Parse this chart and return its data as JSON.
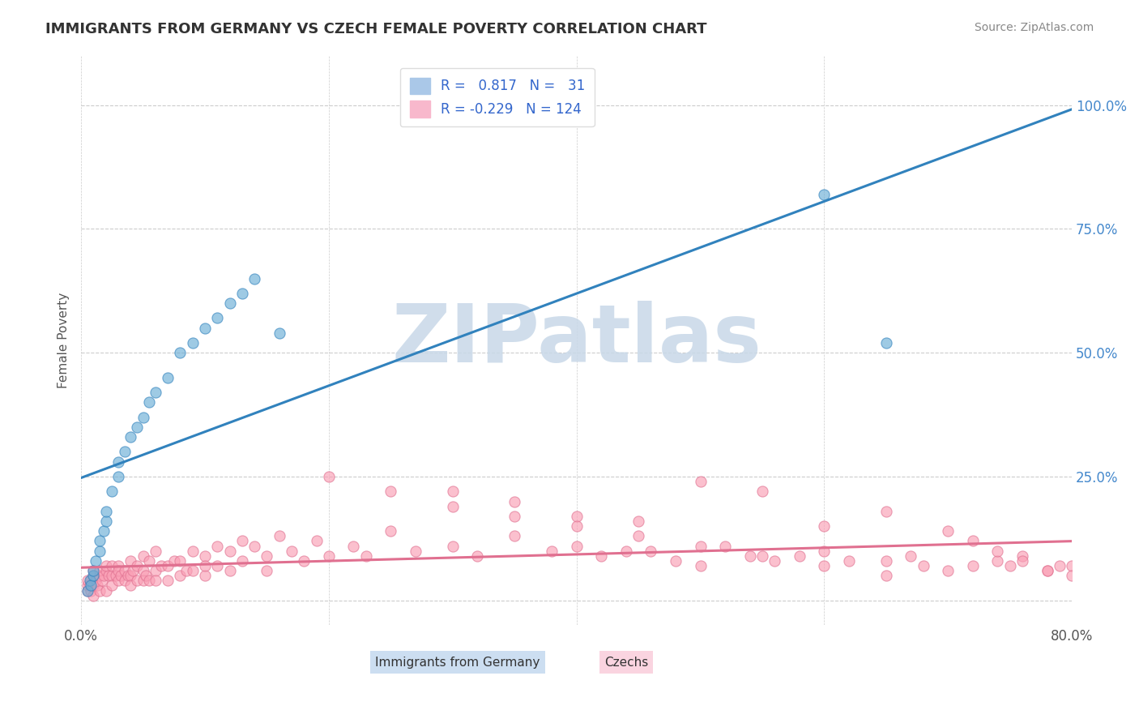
{
  "title": "IMMIGRANTS FROM GERMANY VS CZECH FEMALE POVERTY CORRELATION CHART",
  "source_text": "Source: ZipAtlas.com",
  "xlabel_blue": "Immigrants from Germany",
  "xlabel_pink": "Czechs",
  "ylabel": "Female Poverty",
  "xlim": [
    0.0,
    0.8
  ],
  "ylim": [
    -0.05,
    1.1
  ],
  "xticks": [
    0.0,
    0.2,
    0.4,
    0.6,
    0.8
  ],
  "yticks": [
    0.0,
    0.25,
    0.5,
    0.75,
    1.0
  ],
  "ytick_labels": [
    "",
    "25.0%",
    "50.0%",
    "75.0%",
    "100.0%"
  ],
  "blue_color": "#6baed6",
  "pink_color": "#fa9fb5",
  "blue_line_color": "#3182bd",
  "pink_line_color": "#e07090",
  "R_blue": 0.817,
  "N_blue": 31,
  "R_pink": -0.229,
  "N_pink": 124,
  "watermark": "ZIPatlas",
  "watermark_color": "#c8d8e8",
  "background_color": "#ffffff",
  "grid_color": "#cccccc",
  "title_color": "#333333",
  "blue_scatter_x": [
    0.005,
    0.007,
    0.008,
    0.01,
    0.01,
    0.012,
    0.015,
    0.015,
    0.018,
    0.02,
    0.02,
    0.025,
    0.03,
    0.03,
    0.035,
    0.04,
    0.045,
    0.05,
    0.055,
    0.06,
    0.07,
    0.08,
    0.09,
    0.1,
    0.11,
    0.12,
    0.13,
    0.14,
    0.16,
    0.6,
    0.65
  ],
  "blue_scatter_y": [
    0.02,
    0.04,
    0.03,
    0.05,
    0.06,
    0.08,
    0.1,
    0.12,
    0.14,
    0.16,
    0.18,
    0.22,
    0.25,
    0.28,
    0.3,
    0.33,
    0.35,
    0.37,
    0.4,
    0.42,
    0.45,
    0.5,
    0.52,
    0.55,
    0.57,
    0.6,
    0.62,
    0.65,
    0.54,
    0.82,
    0.52
  ],
  "pink_scatter_x": [
    0.005,
    0.005,
    0.005,
    0.007,
    0.008,
    0.008,
    0.01,
    0.01,
    0.01,
    0.01,
    0.012,
    0.013,
    0.015,
    0.015,
    0.015,
    0.017,
    0.018,
    0.02,
    0.02,
    0.02,
    0.022,
    0.025,
    0.025,
    0.025,
    0.028,
    0.03,
    0.03,
    0.03,
    0.032,
    0.035,
    0.035,
    0.038,
    0.04,
    0.04,
    0.04,
    0.042,
    0.045,
    0.045,
    0.05,
    0.05,
    0.05,
    0.052,
    0.055,
    0.055,
    0.06,
    0.06,
    0.06,
    0.065,
    0.07,
    0.07,
    0.075,
    0.08,
    0.08,
    0.085,
    0.09,
    0.09,
    0.1,
    0.1,
    0.1,
    0.11,
    0.11,
    0.12,
    0.12,
    0.13,
    0.13,
    0.14,
    0.15,
    0.15,
    0.16,
    0.17,
    0.18,
    0.19,
    0.2,
    0.22,
    0.23,
    0.25,
    0.27,
    0.3,
    0.32,
    0.35,
    0.38,
    0.4,
    0.42,
    0.44,
    0.46,
    0.48,
    0.5,
    0.52,
    0.54,
    0.56,
    0.58,
    0.6,
    0.62,
    0.65,
    0.67,
    0.68,
    0.7,
    0.72,
    0.74,
    0.75,
    0.76,
    0.78,
    0.79,
    0.8,
    0.3,
    0.35,
    0.4,
    0.45,
    0.5,
    0.55,
    0.6,
    0.65,
    0.7,
    0.72,
    0.74,
    0.76,
    0.78,
    0.8,
    0.2,
    0.25,
    0.3,
    0.35,
    0.4,
    0.45,
    0.5,
    0.55,
    0.6,
    0.65
  ],
  "pink_scatter_y": [
    0.02,
    0.03,
    0.04,
    0.03,
    0.02,
    0.04,
    0.01,
    0.03,
    0.05,
    0.06,
    0.04,
    0.03,
    0.05,
    0.02,
    0.06,
    0.04,
    0.05,
    0.06,
    0.02,
    0.07,
    0.05,
    0.05,
    0.03,
    0.07,
    0.05,
    0.07,
    0.04,
    0.06,
    0.05,
    0.06,
    0.04,
    0.05,
    0.08,
    0.05,
    0.03,
    0.06,
    0.07,
    0.04,
    0.09,
    0.06,
    0.04,
    0.05,
    0.08,
    0.04,
    0.1,
    0.06,
    0.04,
    0.07,
    0.07,
    0.04,
    0.08,
    0.08,
    0.05,
    0.06,
    0.1,
    0.06,
    0.09,
    0.05,
    0.07,
    0.11,
    0.07,
    0.1,
    0.06,
    0.12,
    0.08,
    0.11,
    0.09,
    0.06,
    0.13,
    0.1,
    0.08,
    0.12,
    0.09,
    0.11,
    0.09,
    0.14,
    0.1,
    0.11,
    0.09,
    0.13,
    0.1,
    0.11,
    0.09,
    0.1,
    0.1,
    0.08,
    0.07,
    0.11,
    0.09,
    0.08,
    0.09,
    0.1,
    0.08,
    0.08,
    0.09,
    0.07,
    0.06,
    0.07,
    0.08,
    0.07,
    0.09,
    0.06,
    0.07,
    0.07,
    0.22,
    0.2,
    0.17,
    0.16,
    0.24,
    0.22,
    0.15,
    0.18,
    0.14,
    0.12,
    0.1,
    0.08,
    0.06,
    0.05,
    0.25,
    0.22,
    0.19,
    0.17,
    0.15,
    0.13,
    0.11,
    0.09,
    0.07,
    0.05
  ]
}
